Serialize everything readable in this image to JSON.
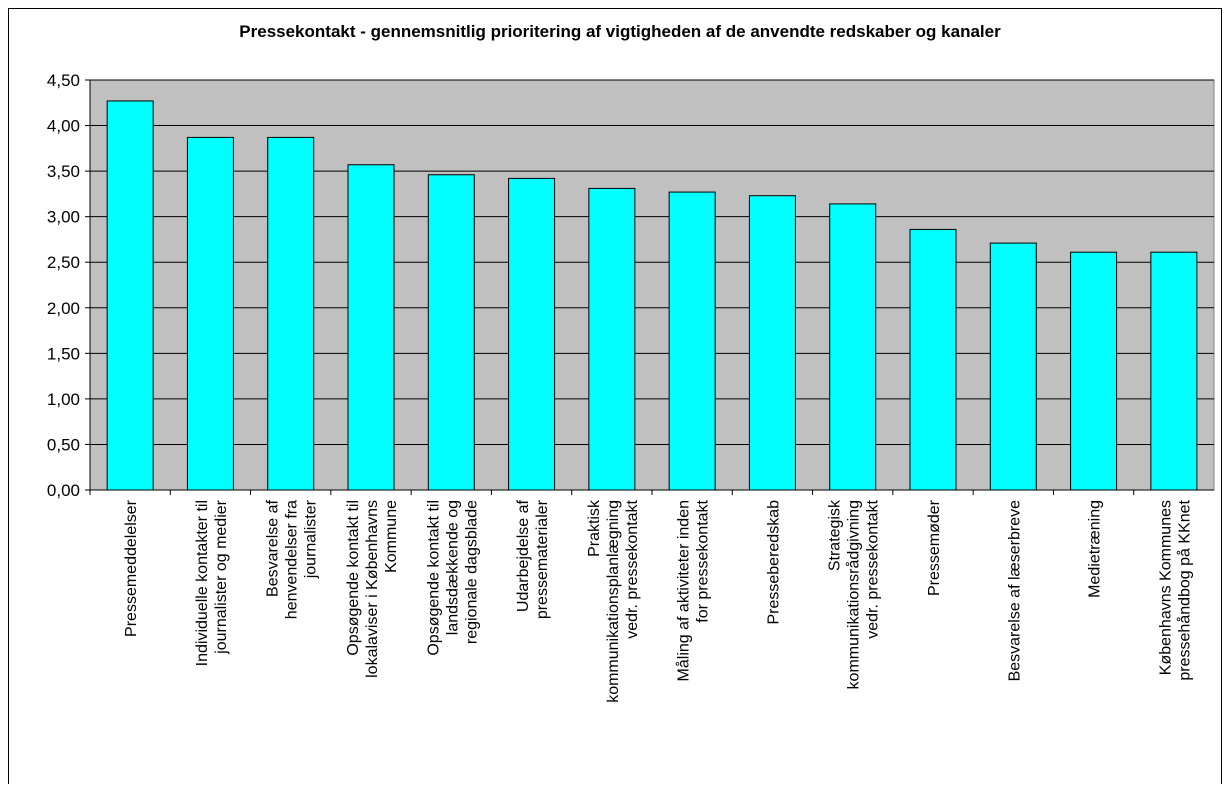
{
  "chart_data": {
    "type": "bar",
    "title": "Pressekontakt - gennemsnitlig prioritering af vigtigheden af de anvendte redskaber og kanaler",
    "xlabel": "",
    "ylabel": "",
    "ylim": [
      0,
      4.5
    ],
    "yticks": [
      "0,00",
      "0,50",
      "1,00",
      "1,50",
      "2,00",
      "2,50",
      "3,00",
      "3,50",
      "4,00",
      "4,50"
    ],
    "grid": true,
    "legend": "none",
    "categories": [
      [
        "Pressemeddelelser"
      ],
      [
        "Individuelle kontakter til",
        "journalister og medier"
      ],
      [
        "Besvarelse af",
        "henvendelser fra",
        "journalister"
      ],
      [
        "Opsøgende kontakt til",
        "lokalaviser i Københavns",
        "Kommune"
      ],
      [
        "Opsøgende kontakt til",
        "landsdækkende og",
        "regionale dagsblade"
      ],
      [
        "Udarbejdelse af",
        "pressematerialer"
      ],
      [
        "Praktisk",
        "kommunikationsplanlægning",
        "vedr. pressekontakt"
      ],
      [
        "Måling af aktiviteter inden",
        "for pressekontakt"
      ],
      [
        "Presseberedskab"
      ],
      [
        "Strategisk",
        "kommunikationsrådgivning",
        "vedr. pressekontakt"
      ],
      [
        "Pressemøder"
      ],
      [
        "Besvarelse af læserbreve"
      ],
      [
        "Medietræning"
      ],
      [
        "Københavns Kommunes",
        "pressehåndbog på KKnet"
      ]
    ],
    "values": [
      4.27,
      3.87,
      3.87,
      3.57,
      3.46,
      3.42,
      3.31,
      3.27,
      3.23,
      3.14,
      2.86,
      2.71,
      2.61,
      2.61
    ],
    "colors": {
      "bar_fill": "#00FFFF",
      "bar_stroke": "#000000",
      "plot_background": "#C0C0C0",
      "grid": "#000000"
    }
  }
}
